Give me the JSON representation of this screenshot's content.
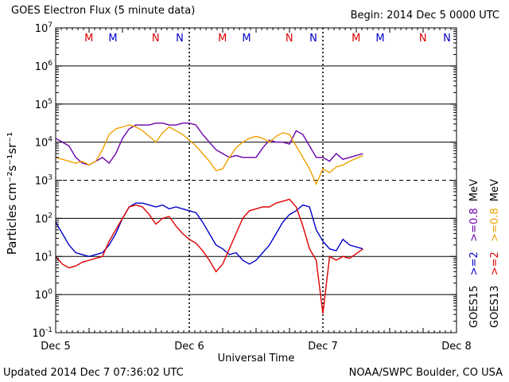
{
  "header": {
    "title": "GOES Electron Flux (5 minute data)",
    "begin": "Begin: 2014 Dec 5 0000 UTC"
  },
  "footer": {
    "updated": "Updated 2014 Dec  7 07:36:02 UTC",
    "credit": "NOAA/SWPC Boulder, CO USA"
  },
  "chart_data": {
    "type": "line",
    "xlabel": "Universal Time",
    "ylabel": "Particles cm⁻²s⁻¹sr⁻¹",
    "ylim_exponent": [
      -1,
      7
    ],
    "log_y": true,
    "x_ticks": [
      "Dec 5",
      "Dec 6",
      "Dec 7",
      "Dec 8"
    ],
    "y_ticks": [
      {
        "base": "10",
        "exp": "7"
      },
      {
        "base": "10",
        "exp": "6"
      },
      {
        "base": "10",
        "exp": "5"
      },
      {
        "base": "10",
        "exp": "4"
      },
      {
        "base": "10",
        "exp": "3"
      },
      {
        "base": "10",
        "exp": "2"
      },
      {
        "base": "10",
        "exp": "1"
      },
      {
        "base": "10",
        "exp": "0"
      },
      {
        "base": "10",
        "exp": "-1"
      }
    ],
    "thresholds": [
      3
    ],
    "markers": [
      {
        "label": "M",
        "day": 0.32,
        "color": "#dd0000"
      },
      {
        "label": "M",
        "day": 0.5,
        "color": "#0000cc"
      },
      {
        "label": "N",
        "day": 0.82,
        "color": "#dd0000"
      },
      {
        "label": "N",
        "day": 1.0,
        "color": "#0000cc"
      },
      {
        "label": "M",
        "day": 1.32,
        "color": "#dd0000"
      },
      {
        "label": "M",
        "day": 1.5,
        "color": "#0000cc"
      },
      {
        "label": "N",
        "day": 1.82,
        "color": "#dd0000"
      },
      {
        "label": "N",
        "day": 2.0,
        "color": "#0000cc"
      },
      {
        "label": "M",
        "day": 2.32,
        "color": "#dd0000"
      },
      {
        "label": "M",
        "day": 2.5,
        "color": "#0000cc"
      },
      {
        "label": "N",
        "day": 2.82,
        "color": "#dd0000"
      },
      {
        "label": "N",
        "day": 3.0,
        "color": "#0000cc"
      }
    ],
    "legend": {
      "groups": [
        {
          "sat": "GOES15",
          "e2": ">=2",
          "e08": ">=0.8",
          "color_e2": "#0000cc",
          "color_e08": "#6a00a8"
        },
        {
          "sat": "GOES13",
          "e2": ">=2",
          "e08": ">=0.8",
          "color_e2": "#dd0000",
          "color_e08": "#f0a000"
        }
      ],
      "unit": "MeV",
      "placement": "right"
    },
    "series": [
      {
        "name": "GOES15 >=0.8 MeV",
        "color": "#6a00a8",
        "x": [
          0,
          0.05,
          0.1,
          0.15,
          0.2,
          0.25,
          0.3,
          0.35,
          0.4,
          0.45,
          0.5,
          0.55,
          0.6,
          0.65,
          0.7,
          0.75,
          0.8,
          0.85,
          0.9,
          0.95,
          1.0,
          1.05,
          1.1,
          1.15,
          1.2,
          1.25,
          1.3,
          1.35,
          1.4,
          1.45,
          1.5,
          1.55,
          1.6,
          1.65,
          1.7,
          1.75,
          1.8,
          1.85,
          1.9,
          1.95,
          2.0,
          2.05,
          2.1,
          2.15,
          2.2,
          2.3
        ],
        "y": [
          4.1,
          4.0,
          3.9,
          3.6,
          3.45,
          3.4,
          3.5,
          3.6,
          3.45,
          3.7,
          4.1,
          4.35,
          4.45,
          4.45,
          4.45,
          4.5,
          4.5,
          4.45,
          4.45,
          4.5,
          4.5,
          4.45,
          4.2,
          4.0,
          3.8,
          3.7,
          3.6,
          3.65,
          3.6,
          3.6,
          3.6,
          3.85,
          4.05,
          4.0,
          4.0,
          3.95,
          4.3,
          4.2,
          3.9,
          3.6,
          3.6,
          3.5,
          3.7,
          3.55,
          3.6,
          3.7
        ]
      },
      {
        "name": "GOES13 >=0.8 MeV",
        "color": "#f0a000",
        "x": [
          0,
          0.05,
          0.1,
          0.15,
          0.2,
          0.25,
          0.3,
          0.35,
          0.4,
          0.45,
          0.5,
          0.55,
          0.6,
          0.65,
          0.7,
          0.75,
          0.8,
          0.85,
          0.9,
          0.95,
          1.0,
          1.05,
          1.1,
          1.15,
          1.2,
          1.25,
          1.3,
          1.35,
          1.4,
          1.45,
          1.5,
          1.55,
          1.6,
          1.65,
          1.7,
          1.75,
          1.8,
          1.85,
          1.9,
          1.95,
          2.0,
          2.05,
          2.1,
          2.15,
          2.2,
          2.3
        ],
        "y": [
          3.6,
          3.55,
          3.5,
          3.45,
          3.5,
          3.4,
          3.5,
          3.8,
          4.2,
          4.35,
          4.4,
          4.45,
          4.4,
          4.3,
          4.15,
          4.0,
          4.25,
          4.4,
          4.3,
          4.2,
          4.05,
          3.9,
          3.7,
          3.5,
          3.25,
          3.3,
          3.6,
          3.85,
          4.0,
          4.1,
          4.15,
          4.1,
          4.0,
          4.15,
          4.25,
          4.2,
          3.9,
          3.6,
          3.3,
          2.9,
          3.3,
          3.2,
          3.35,
          3.4,
          3.5,
          3.65
        ]
      },
      {
        "name": "GOES15 >=2 MeV",
        "color": "#0000cc",
        "x": [
          0,
          0.05,
          0.1,
          0.15,
          0.2,
          0.25,
          0.3,
          0.35,
          0.4,
          0.45,
          0.5,
          0.55,
          0.6,
          0.65,
          0.7,
          0.75,
          0.8,
          0.85,
          0.9,
          0.95,
          1.0,
          1.05,
          1.1,
          1.15,
          1.2,
          1.25,
          1.3,
          1.35,
          1.4,
          1.45,
          1.5,
          1.55,
          1.6,
          1.65,
          1.7,
          1.75,
          1.8,
          1.85,
          1.9,
          1.95,
          2.0,
          2.05,
          2.1,
          2.15,
          2.2,
          2.3
        ],
        "y": [
          1.9,
          1.6,
          1.3,
          1.1,
          1.05,
          1.0,
          1.05,
          1.1,
          1.3,
          1.6,
          2.0,
          2.3,
          2.4,
          2.4,
          2.35,
          2.3,
          2.35,
          2.25,
          2.3,
          2.25,
          2.2,
          2.15,
          1.9,
          1.6,
          1.3,
          1.2,
          1.05,
          1.1,
          0.9,
          0.8,
          0.9,
          1.1,
          1.3,
          1.6,
          1.9,
          2.1,
          2.2,
          2.35,
          2.3,
          1.7,
          1.4,
          1.2,
          1.15,
          1.45,
          1.3,
          1.2
        ]
      },
      {
        "name": "GOES13 >=2 MeV",
        "color": "#dd0000",
        "x": [
          0,
          0.05,
          0.1,
          0.15,
          0.2,
          0.25,
          0.3,
          0.35,
          0.4,
          0.45,
          0.5,
          0.55,
          0.6,
          0.65,
          0.7,
          0.75,
          0.8,
          0.85,
          0.9,
          0.95,
          1.0,
          1.05,
          1.1,
          1.15,
          1.2,
          1.25,
          1.3,
          1.35,
          1.4,
          1.45,
          1.5,
          1.55,
          1.6,
          1.65,
          1.7,
          1.75,
          1.8,
          1.85,
          1.9,
          1.95,
          2.0,
          2.05,
          2.1,
          2.15,
          2.2,
          2.3
        ],
        "y": [
          1.0,
          0.8,
          0.7,
          0.75,
          0.85,
          0.9,
          0.95,
          1.0,
          1.4,
          1.7,
          2.0,
          2.3,
          2.35,
          2.3,
          2.1,
          1.85,
          2.0,
          2.05,
          1.8,
          1.6,
          1.45,
          1.35,
          1.15,
          0.9,
          0.6,
          0.8,
          1.2,
          1.6,
          2.0,
          2.2,
          2.25,
          2.3,
          2.3,
          2.4,
          2.45,
          2.5,
          2.3,
          1.8,
          1.2,
          0.9,
          -0.5,
          1.0,
          0.9,
          1.0,
          0.95,
          1.2
        ]
      }
    ]
  }
}
